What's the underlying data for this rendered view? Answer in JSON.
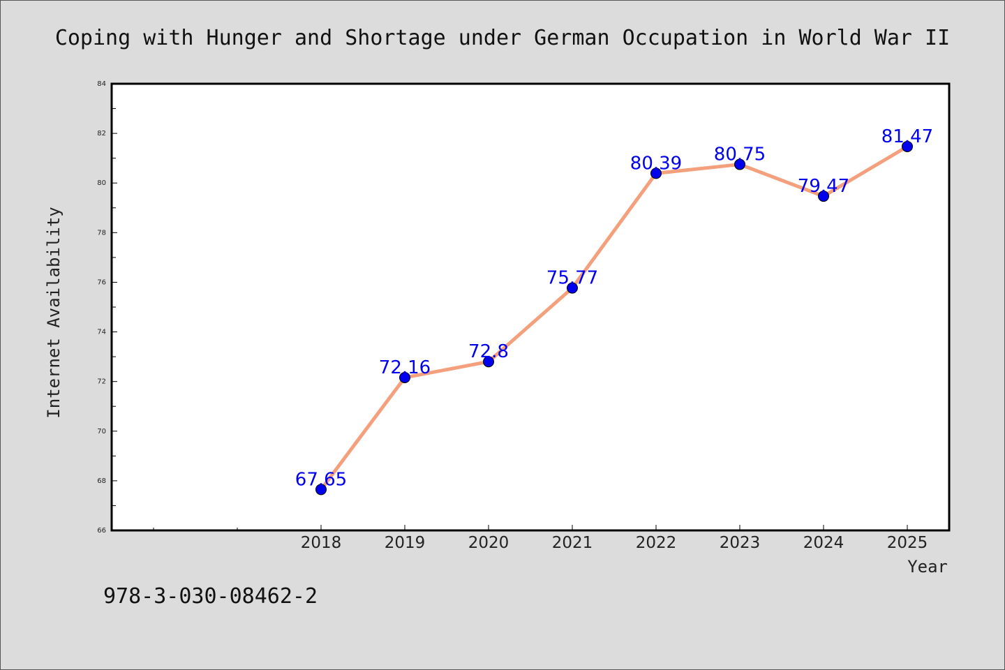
{
  "chart_data": {
    "type": "line",
    "title": "Coping with Hunger and Shortage under German Occupation in World War II",
    "xlabel": "Year",
    "ylabel": "Internet Availability",
    "x": [
      "2018",
      "2019",
      "2020",
      "2021",
      "2022",
      "2023",
      "2024",
      "2025"
    ],
    "series": [
      {
        "values": [
          67.65,
          72.16,
          72.8,
          75.77,
          80.39,
          80.75,
          79.47,
          81.47
        ]
      }
    ],
    "data_labels": [
      "67.65",
      "72.16",
      "72.8",
      "75.77",
      "80.39",
      "80.75",
      "79.47",
      "81.47"
    ],
    "ylim": [
      66,
      84
    ],
    "yticks": [
      "66",
      "68",
      "70",
      "72",
      "74",
      "76",
      "78",
      "80",
      "82",
      "84"
    ],
    "grid": false,
    "line_color": "#f4a07c",
    "marker_color": "#0000ee",
    "label_color": "#0000ee"
  },
  "footer": {
    "isbn": "978-3-030-08462-2"
  }
}
